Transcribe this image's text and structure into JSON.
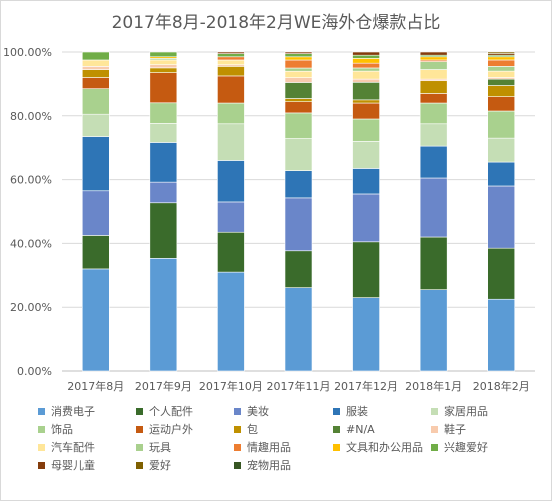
{
  "chart_data": {
    "type": "bar",
    "stacked": true,
    "normalized": true,
    "title": "2017年8月-2018年2月WE海外仓爆款占比",
    "xlabel": "",
    "ylabel": "",
    "ylim": [
      0,
      100
    ],
    "y_ticks": [
      "0.00%",
      "20.00%",
      "40.00%",
      "60.00%",
      "80.00%",
      "100.00%"
    ],
    "grid": "horizontal",
    "legend_position": "bottom",
    "categories": [
      "2017年8月",
      "2017年9月",
      "2017年10月",
      "2017年11月",
      "2017年12月",
      "2018年1月",
      "2018年2月"
    ],
    "series": [
      {
        "name": "消费电子",
        "color": "#5b9bd5",
        "values": [
          32,
          35.5,
          31,
          26,
          23,
          25.5,
          22.5
        ]
      },
      {
        "name": "个人配件",
        "color": "#3a6b2b",
        "values": [
          10.5,
          17.5,
          12.5,
          11.5,
          17.5,
          16.5,
          16
        ]
      },
      {
        "name": "美妆",
        "color": "#6a86c9",
        "values": [
          14,
          6.5,
          9.5,
          16.5,
          15,
          18.5,
          19.5
        ]
      },
      {
        "name": "服装",
        "color": "#2e75b6",
        "values": [
          17,
          12.5,
          13,
          8.5,
          8,
          10,
          7.5
        ]
      },
      {
        "name": "家居用品",
        "color": "#c5deb5",
        "values": [
          7,
          6,
          11.5,
          10,
          8.5,
          7,
          7.5
        ]
      },
      {
        "name": "饰品",
        "color": "#a9d18e",
        "values": [
          8,
          6.5,
          6.5,
          8,
          7,
          6.5,
          8.5
        ]
      },
      {
        "name": "运动户外",
        "color": "#c55a11",
        "values": [
          3.5,
          9.5,
          8.5,
          3.5,
          5,
          3,
          4.5
        ]
      },
      {
        "name": "包",
        "color": "#bf9000",
        "values": [
          2.5,
          1.5,
          3,
          1,
          1,
          4,
          3.5
        ]
      },
      {
        "name": "#N/A",
        "color": "#548235",
        "values": [
          0,
          0,
          0,
          5,
          5.5,
          0,
          2
        ]
      },
      {
        "name": "鞋子",
        "color": "#f8cbad",
        "values": [
          1,
          1,
          0.5,
          1.5,
          1,
          0.5,
          0.5
        ]
      },
      {
        "name": "汽车配件",
        "color": "#ffe699",
        "values": [
          2,
          1.5,
          1.5,
          2,
          2.5,
          3,
          2
        ]
      },
      {
        "name": "玩具",
        "color": "#a9d08e",
        "values": [
          0,
          0.5,
          0,
          1,
          1,
          2.5,
          1.5
        ]
      },
      {
        "name": "情趣用品",
        "color": "#ed7d31",
        "values": [
          0,
          0,
          1,
          2.5,
          1.5,
          0.5,
          2
        ]
      },
      {
        "name": "文具和办公用品",
        "color": "#ffc000",
        "values": [
          0,
          0.5,
          0,
          1,
          1.5,
          1,
          1
        ]
      },
      {
        "name": "兴趣爱好",
        "color": "#70ad47",
        "values": [
          2.5,
          1.5,
          1,
          1,
          1,
          0.5,
          0.5
        ]
      },
      {
        "name": "母婴儿童",
        "color": "#843c0c",
        "values": [
          0,
          0,
          0.5,
          0.5,
          1,
          1,
          0.5
        ]
      },
      {
        "name": "爱好",
        "color": "#7f6000",
        "values": [
          0,
          0,
          0,
          0,
          0,
          0,
          0.5
        ]
      },
      {
        "name": "宠物用品",
        "color": "#375623",
        "values": [
          0,
          0,
          0,
          0,
          0,
          0,
          0
        ]
      }
    ]
  }
}
